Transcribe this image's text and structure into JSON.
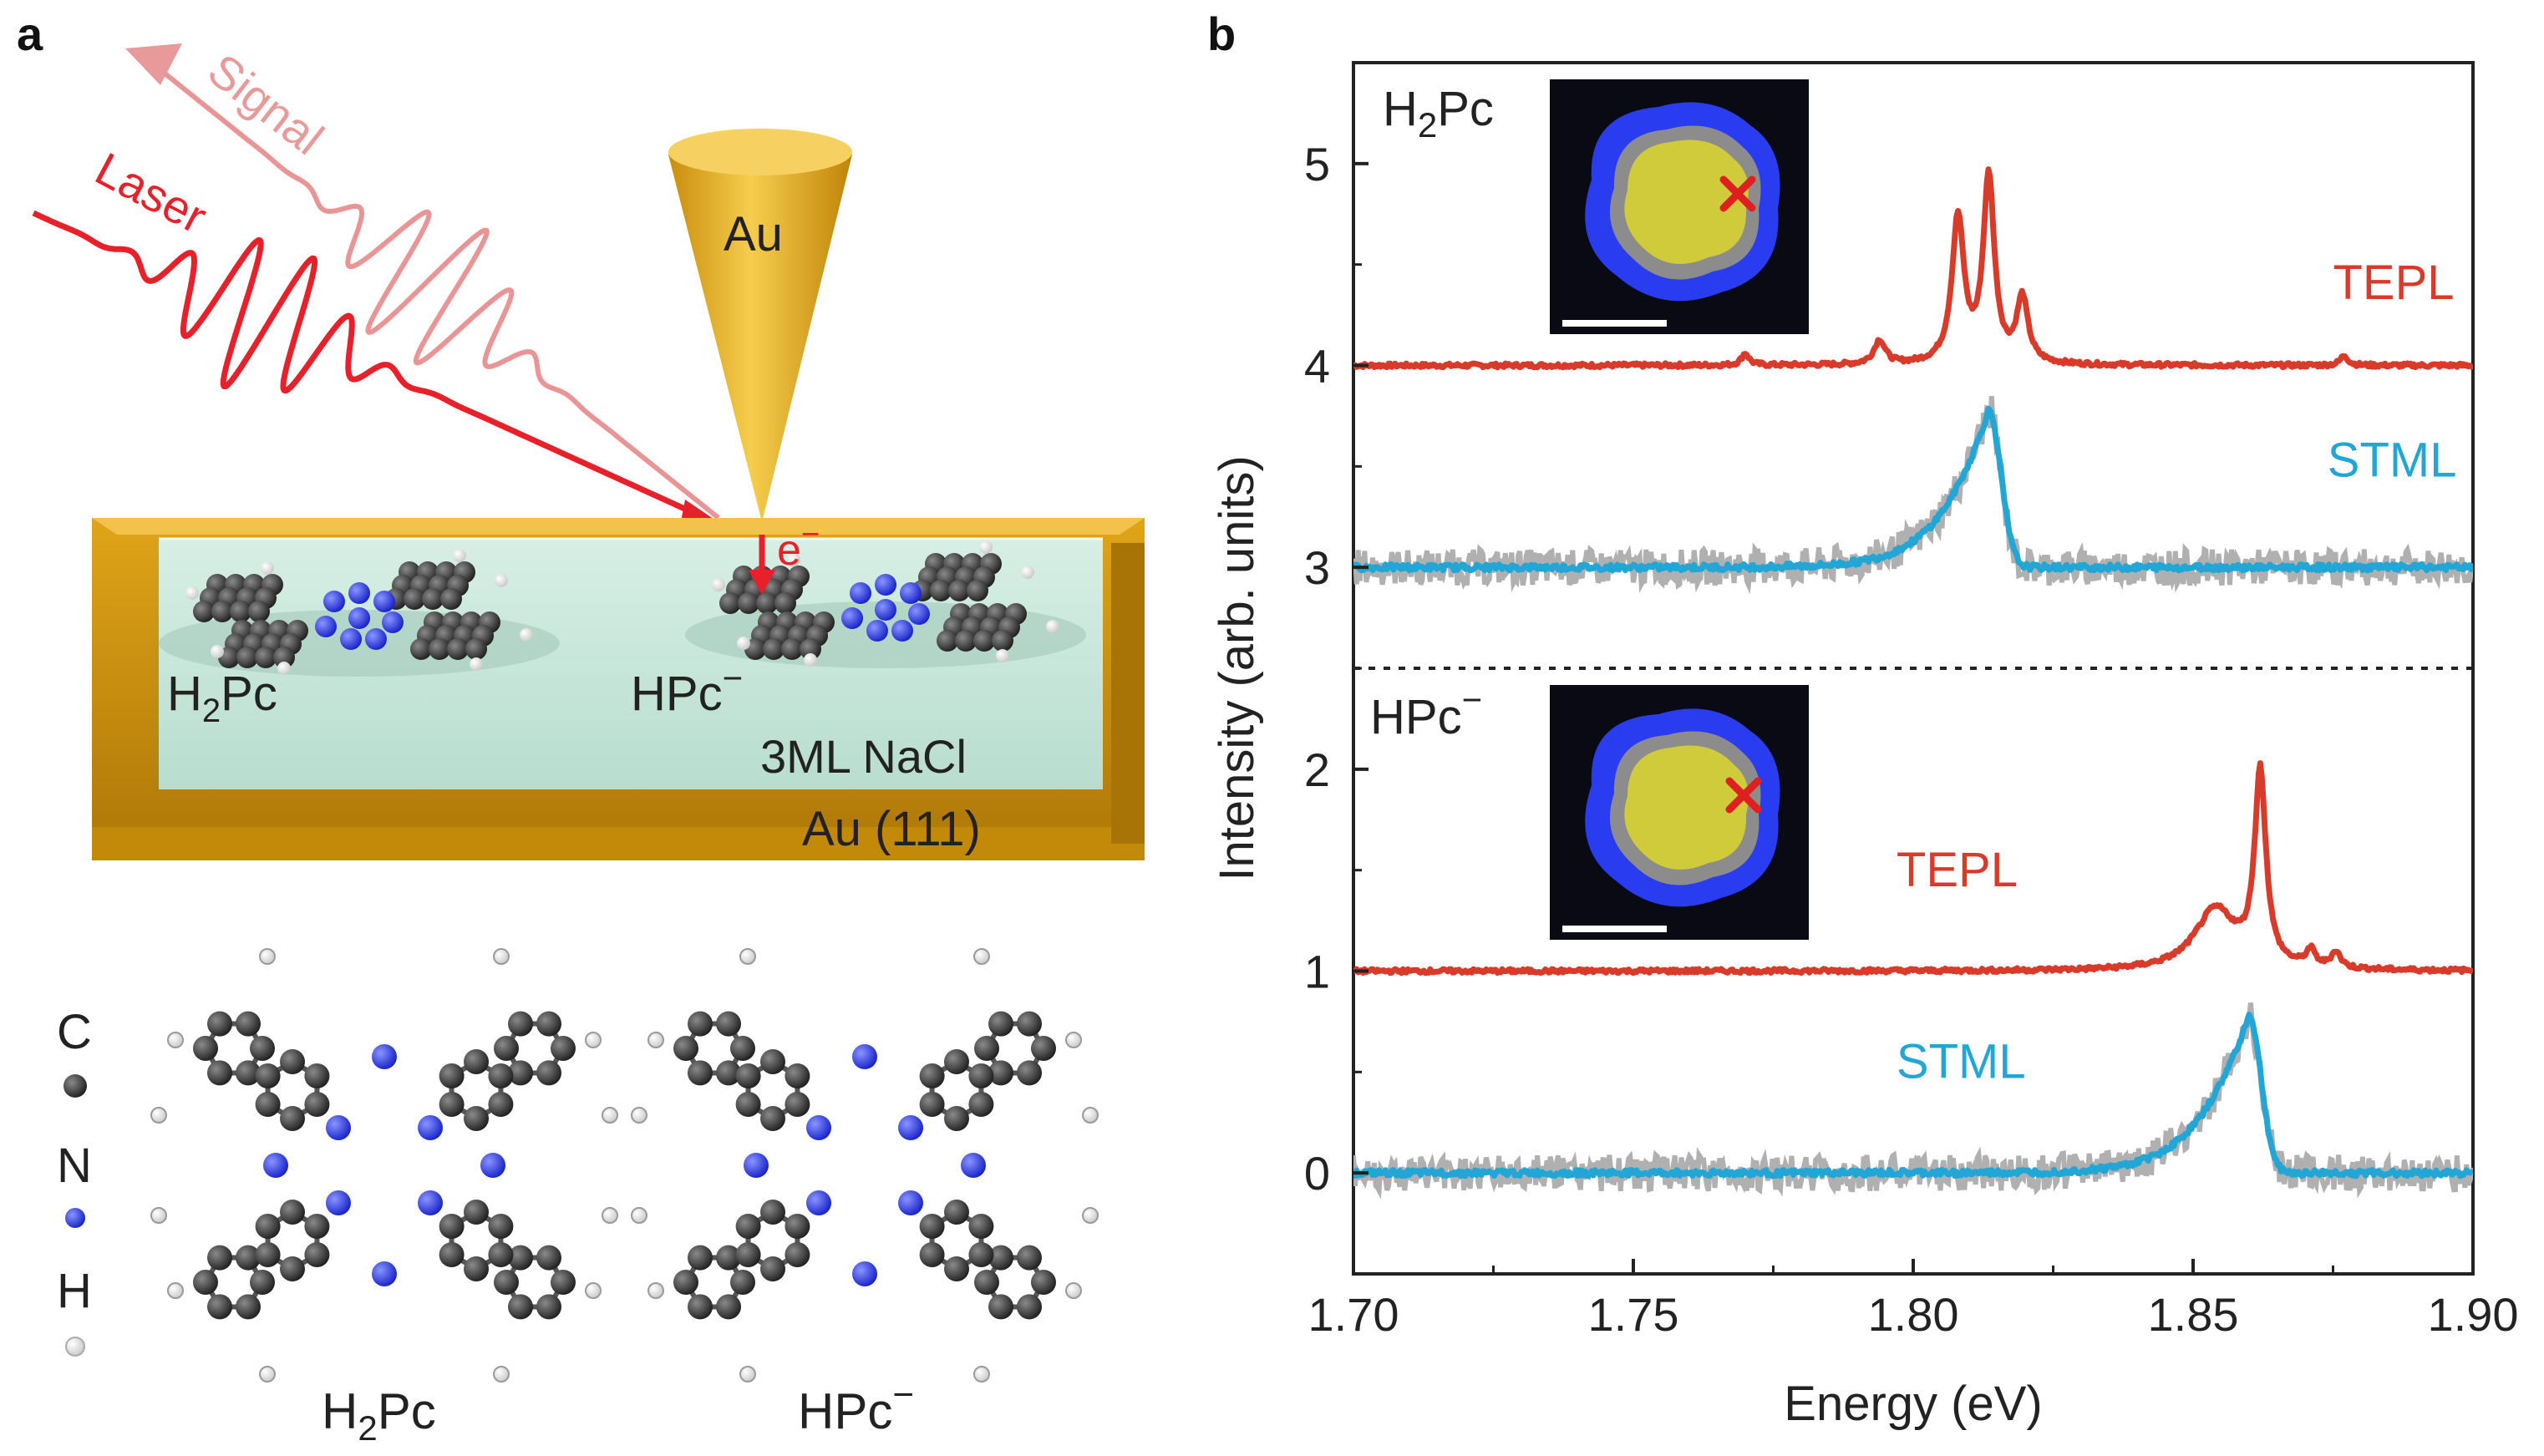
{
  "figure": {
    "panel_a": {
      "letter": "a",
      "signal_label": "Signal",
      "laser_label": "Laser",
      "tip_label": "Au",
      "electron_label": "e",
      "electron_sup": "−",
      "mol_left_pre": "H",
      "mol_left_sub": "2",
      "mol_left_post": "Pc",
      "mol_right_pre": "HPc",
      "mol_right_sup": "−",
      "nacl_label": "3ML NaCl",
      "substrate_label": "Au (111)",
      "legend_c": "C",
      "legend_n": "N",
      "legend_h": "H",
      "struct_left_pre": "H",
      "struct_left_sub": "2",
      "struct_left_post": "Pc",
      "struct_right_pre": "HPc",
      "struct_right_sup": "−",
      "colors": {
        "carbon": "#3a3a3a",
        "nitrogen": "#2233dd",
        "hydrogen": "#f2f2f2",
        "gold": "#e0a418",
        "nacl": "#cfe9df",
        "laser": "#e8202a",
        "signal": "#e88a8a"
      }
    },
    "panel_b": {
      "letter": "b",
      "top_inset_pre": "H",
      "top_inset_sub": "2",
      "top_inset_post": "Pc",
      "bottom_inset_pre": "HPc",
      "bottom_inset_sup": "−",
      "colors": {
        "tepl": "#d93b2b",
        "stml": "#22a6d6",
        "raw": "#b0b0b0",
        "inset_bg": "#0a0a14",
        "inset_ring": "#2a3cf0",
        "inset_core": "#cfcf3a",
        "marker": "#e02020"
      }
    }
  },
  "chart_data": {
    "type": "line",
    "xlabel": "Energy (eV)",
    "ylabel": "Intensity (arb. units)",
    "xlim": [
      1.7,
      1.9
    ],
    "ylim": [
      -0.5,
      5.5
    ],
    "xticks": [
      1.7,
      1.75,
      1.8,
      1.85,
      1.9
    ],
    "xtick_labels": [
      "1.70",
      "1.75",
      "1.80",
      "1.85",
      "1.90"
    ],
    "yticks": [
      0,
      1,
      2,
      3,
      4,
      5
    ],
    "ytick_labels": [
      "0",
      "1",
      "2",
      "3",
      "4",
      "5"
    ],
    "divider_y": 2.5,
    "series": [
      {
        "name": "TEPL",
        "molecule": "H2Pc",
        "offset": 4,
        "color": "#d93b2b",
        "peaks": [
          {
            "x": 1.808,
            "height": 0.72,
            "width": 0.0013
          },
          {
            "x": 1.8135,
            "height": 0.92,
            "width": 0.0012
          },
          {
            "x": 1.8195,
            "height": 0.32,
            "width": 0.0012
          },
          {
            "x": 1.794,
            "height": 0.12,
            "width": 0.0012
          },
          {
            "x": 1.77,
            "height": 0.06,
            "width": 0.0008
          },
          {
            "x": 1.877,
            "height": 0.05,
            "width": 0.0008
          }
        ],
        "noise": 0.02,
        "raw": false
      },
      {
        "name": "STML",
        "molecule": "H2Pc",
        "offset": 3,
        "color": "#22a6d6",
        "peaks": [
          {
            "x": 1.8135,
            "height": 0.78,
            "width": 0.003,
            "skew": 0.028
          }
        ],
        "noise": 0.03,
        "raw": true
      },
      {
        "name": "TEPL",
        "molecule": "HPc−",
        "offset": 1,
        "color": "#d93b2b",
        "peaks": [
          {
            "x": 1.862,
            "height": 0.95,
            "width": 0.0012
          },
          {
            "x": 1.854,
            "height": 0.3,
            "width": 0.0045
          },
          {
            "x": 1.871,
            "height": 0.08,
            "width": 0.001
          },
          {
            "x": 1.8755,
            "height": 0.08,
            "width": 0.001
          }
        ],
        "noise": 0.02,
        "raw": false
      },
      {
        "name": "STML",
        "molecule": "HPc−",
        "offset": 0,
        "color": "#22a6d6",
        "peaks": [
          {
            "x": 1.86,
            "height": 0.78,
            "width": 0.003,
            "skew": 0.03
          }
        ],
        "noise": 0.03,
        "raw": true
      }
    ],
    "annotations": [
      {
        "text": "TEPL",
        "x": 1.875,
        "y": 4.33,
        "color": "#d93b2b"
      },
      {
        "text": "STML",
        "x": 1.874,
        "y": 3.45,
        "color": "#22a6d6"
      },
      {
        "text": "TEPL",
        "x": 1.797,
        "y": 1.42,
        "color": "#d93b2b"
      },
      {
        "text": "STML",
        "x": 1.797,
        "y": 0.47,
        "color": "#22a6d6"
      }
    ]
  }
}
